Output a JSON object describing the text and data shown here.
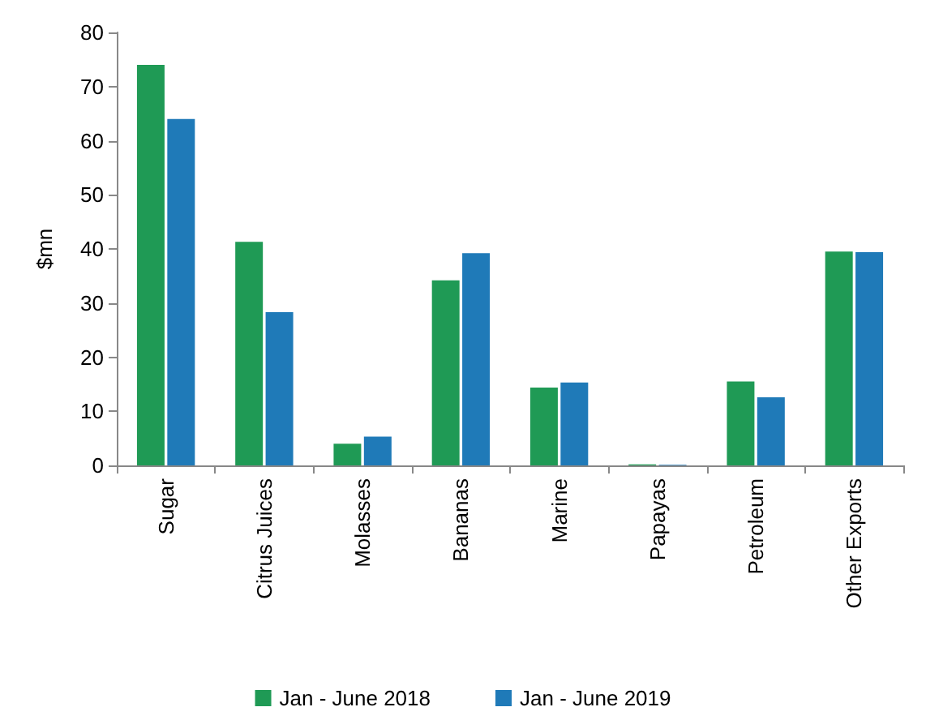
{
  "chart_data": {
    "type": "bar",
    "ylabel": "$mn",
    "categories": [
      "Sugar",
      "Citrus Juices",
      "Molasses",
      "Bananas",
      "Marine",
      "Papayas",
      "Petroleum",
      "Other Exports"
    ],
    "series": [
      {
        "name": "Jan - June 2018",
        "color": "#1f9a55",
        "values": [
          74,
          41.3,
          4,
          34.2,
          14.4,
          0.2,
          15.5,
          39.5
        ]
      },
      {
        "name": "Jan - June 2019",
        "color": "#1f7ab8",
        "values": [
          64,
          28.3,
          5.3,
          39.2,
          15.3,
          0.1,
          12.6,
          39.4
        ]
      }
    ],
    "ylim": [
      0,
      80
    ],
    "yticks": [
      0,
      10,
      20,
      30,
      40,
      50,
      60,
      70,
      80
    ],
    "grid": false,
    "legend": "bottom"
  }
}
